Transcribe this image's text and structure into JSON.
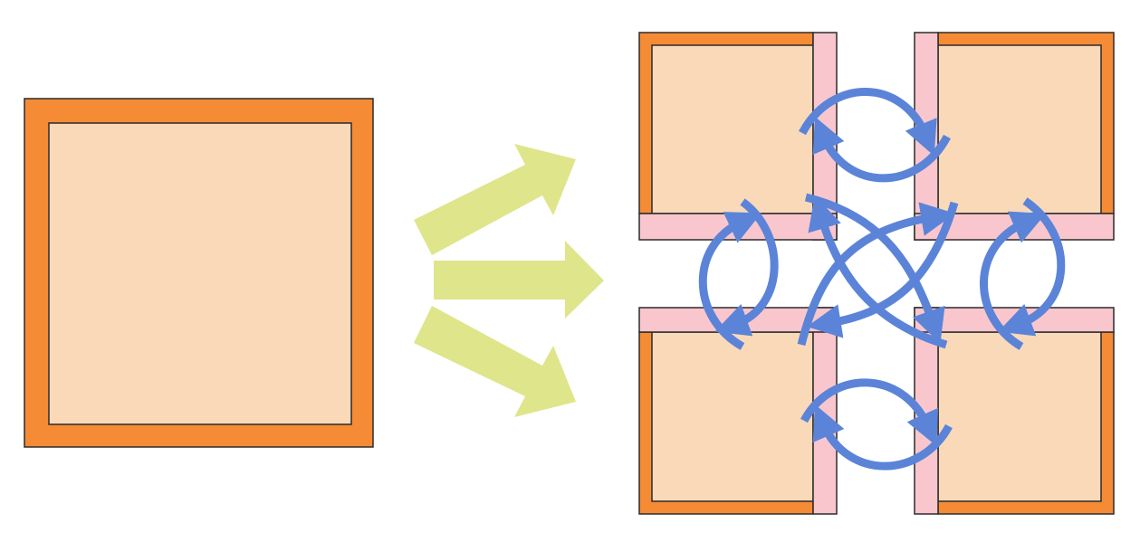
{
  "diagram": {
    "colors": {
      "background": "#ffffff",
      "outer_frame": "#f68b35",
      "inner_fill": "#fad9b9",
      "outline": "#2b2b2b",
      "pink_strip": "#f9c6cd",
      "split_arrow": "#dfe58b",
      "exchange_arrow": "#5b84d8"
    },
    "source_block": {
      "icon": "single-square-block"
    },
    "split_arrows": {
      "count": 3,
      "icon": "split-arrows"
    },
    "result_blocks": {
      "count": 4,
      "icon": "quartered-block-with-border-strips"
    },
    "exchange_arrows": {
      "icon": "curved-bidirectional-arrows",
      "pairs": 6
    }
  }
}
